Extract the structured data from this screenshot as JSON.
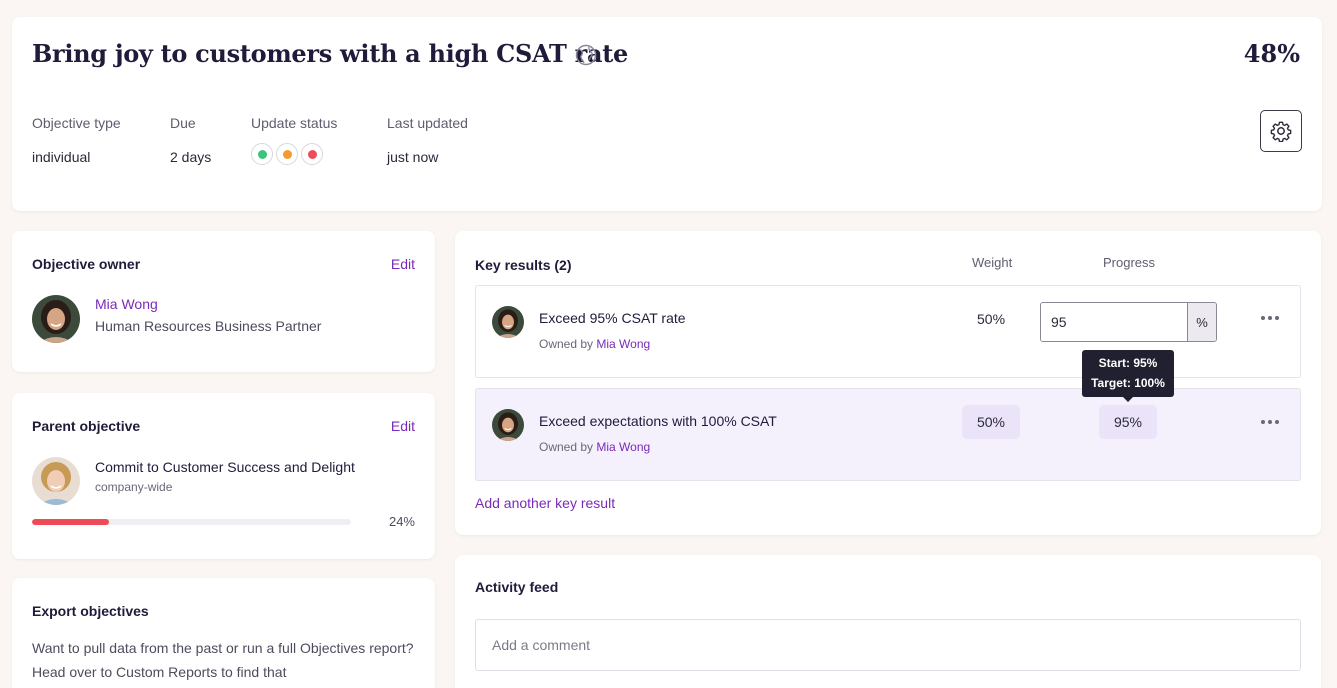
{
  "objective": {
    "title": "Bring joy to customers with a high CSAT rate",
    "progress": "48%",
    "meta": {
      "type_label": "Objective type",
      "type_value": "individual",
      "due_label": "Due",
      "due_value": "2 days",
      "status_label": "Update status",
      "status_colors": [
        "#3cc37a",
        "#f59a2e",
        "#ef4b57"
      ],
      "updated_label": "Last updated",
      "updated_value": "just now"
    }
  },
  "owner_card": {
    "heading": "Objective owner",
    "edit_label": "Edit",
    "name": "Mia Wong",
    "role": "Human Resources Business Partner"
  },
  "parent_card": {
    "heading": "Parent objective",
    "edit_label": "Edit",
    "title": "Commit to Customer Success and Delight",
    "scope": "company-wide",
    "progress_label": "24%",
    "progress_fraction": 0.24,
    "bar_color": "#ef4b57"
  },
  "export_card": {
    "heading": "Export objectives",
    "text": "Want to pull data from the past or run a full Objectives report? Head over to Custom Reports to find that"
  },
  "key_results": {
    "heading": "Key results (2)",
    "weight_col": "Weight",
    "progress_col": "Progress",
    "owned_by_label": "Owned by",
    "items": [
      {
        "title": "Exceed 95% CSAT rate",
        "owner": "Mia Wong",
        "weight": "50%",
        "progress_value": "95",
        "progress_unit": "%"
      },
      {
        "title": "Exceed expectations with 100% CSAT",
        "owner": "Mia Wong",
        "weight": "50%",
        "progress": "95%"
      }
    ],
    "tooltip": {
      "start": "Start: 95%",
      "target": "Target: 100%"
    },
    "add_label": "Add another key result"
  },
  "activity": {
    "heading": "Activity feed",
    "comment_placeholder": "Add a comment"
  },
  "colors": {
    "accent": "#7a2ab8",
    "title": "#1f1b3a",
    "highlight_row": "#f5f1fc"
  }
}
